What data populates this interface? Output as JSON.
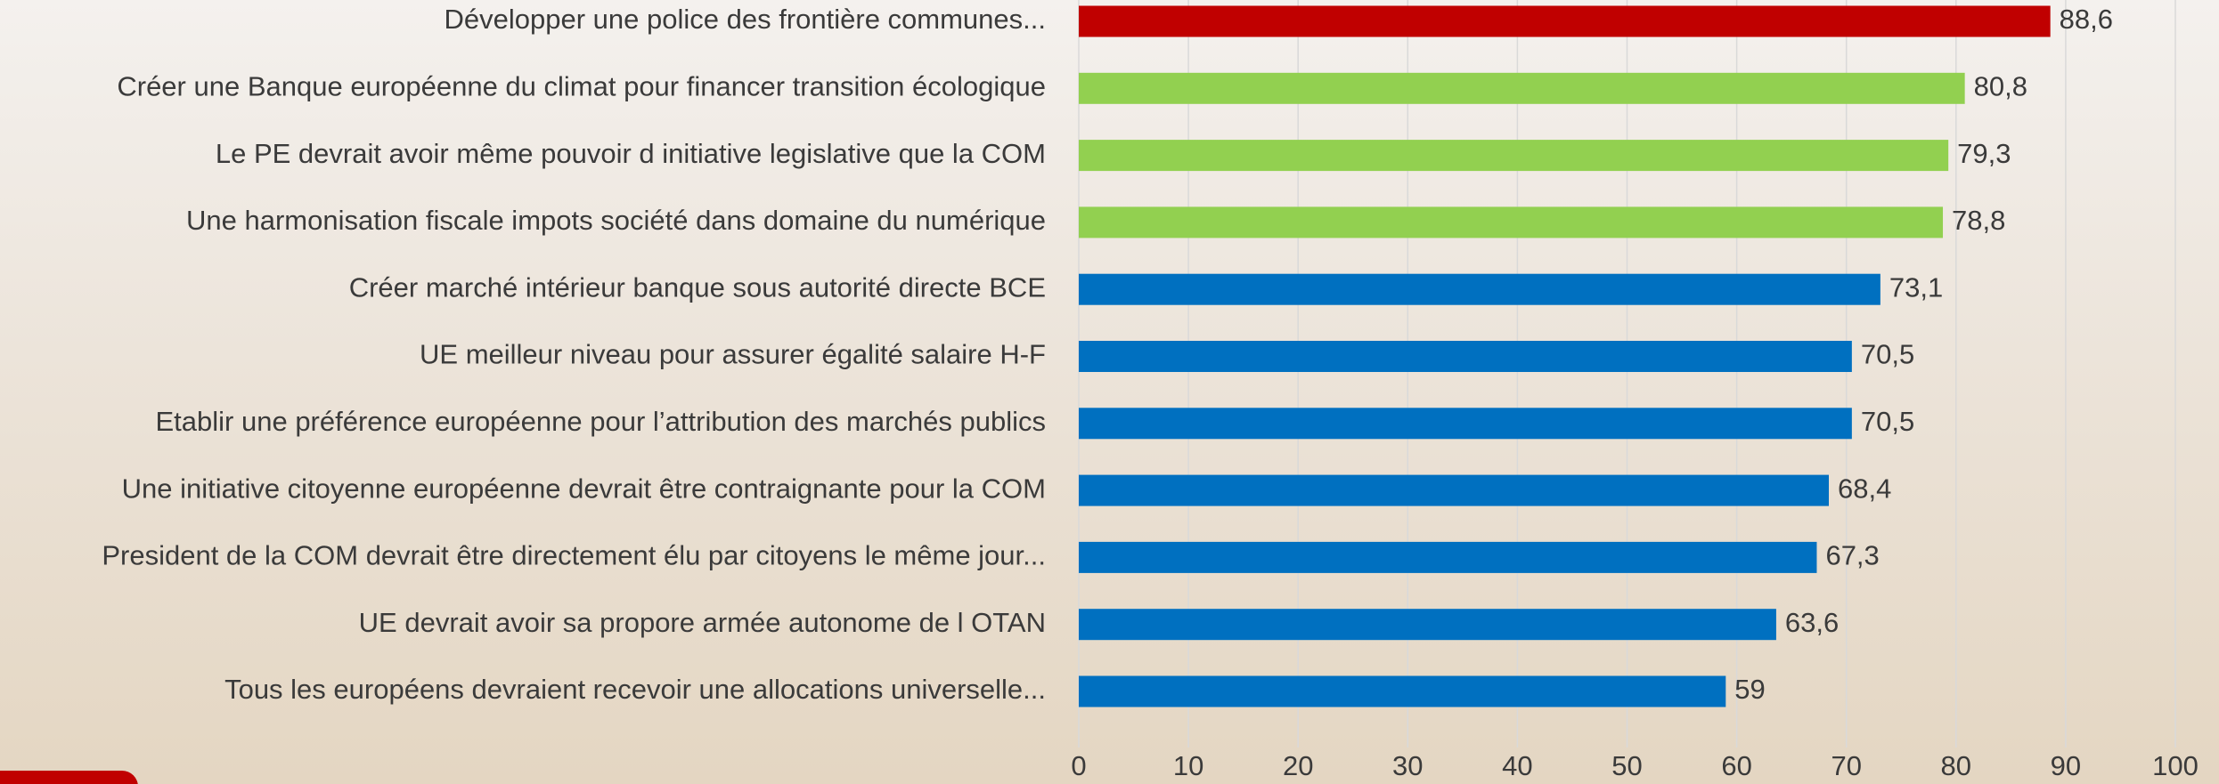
{
  "chart_data": {
    "type": "hbar",
    "categories": [
      "Développer une police des frontière communes...",
      "Créer une Banque européenne du climat pour financer transition écologique",
      "Le PE devrait avoir même pouvoir d initiative legislative que la COM",
      "Une harmonisation fiscale impots société dans domaine du numérique",
      "Créer marché intérieur banque sous autorité directe BCE",
      "UE meilleur niveau pour assurer égalité salaire H-F",
      "Etablir une préférence européenne pour l’attribution des marchés publics",
      "Une initiative citoyenne européenne devrait être contraignante pour la COM",
      "President de la COM devrait être directement élu par citoyens le même jour...",
      "UE devrait avoir sa propore armée autonome de l OTAN",
      "Tous les européens devraient recevoir une allocations universelle..."
    ],
    "values": [
      88.6,
      80.8,
      79.3,
      78.8,
      73.1,
      70.5,
      70.5,
      68.4,
      67.3,
      63.6,
      59
    ],
    "value_labels": [
      "88,6",
      "80,8",
      "79,3",
      "78,8",
      "73,1",
      "70,5",
      "70,5",
      "68,4",
      "67,3",
      "63,6",
      "59"
    ],
    "colors": [
      "#c00000",
      "#92d050",
      "#92d050",
      "#92d050",
      "#0070c0",
      "#0070c0",
      "#0070c0",
      "#0070c0",
      "#0070c0",
      "#0070c0",
      "#0070c0"
    ],
    "xlim": [
      0,
      100
    ],
    "xticks": [
      0,
      10,
      20,
      30,
      40,
      50,
      60,
      70,
      80,
      90,
      100
    ],
    "grid": true
  }
}
